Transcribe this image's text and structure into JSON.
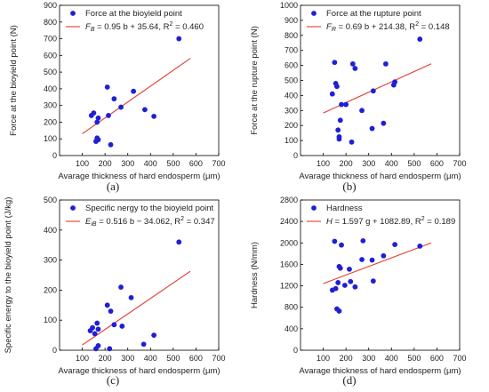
{
  "colors": {
    "point": "#1f1fd6",
    "fit": "#e8382e",
    "axis": "#000000"
  },
  "chart_data": [
    {
      "type": "scatter",
      "panel_label": "(a)",
      "xlabel": "Avarage thickness of hard endosperm (μm)",
      "ylabel": "Force at the bioyield point (N)",
      "xlim": [
        0,
        700
      ],
      "ylim": [
        0,
        900
      ],
      "xticks": [
        "100",
        "200",
        "300",
        "400",
        "500",
        "600",
        "700"
      ],
      "yticks": [
        "0",
        "100",
        "200",
        "300",
        "400",
        "500",
        "600",
        "700",
        "800",
        "900"
      ],
      "legend": {
        "position": "top-left",
        "point_label": "Force at the bioyield point",
        "fit_label": {
          "var": "F",
          "sub": "B",
          "rest": " = 0.95 b + 35.64, R",
          "sup": "2",
          "tail": " = 0.460"
        }
      },
      "series": [
        {
          "name": "Force at the bioyield point",
          "x": [
            140,
            150,
            160,
            165,
            165,
            170,
            170,
            210,
            215,
            225,
            240,
            270,
            325,
            375,
            415,
            525
          ],
          "y": [
            240,
            255,
            85,
            105,
            200,
            225,
            95,
            410,
            240,
            65,
            340,
            290,
            385,
            275,
            235,
            700
          ]
        }
      ],
      "fit": {
        "slope": 0.95,
        "intercept": 35.64,
        "x_range": [
          100,
          575
        ]
      }
    },
    {
      "type": "scatter",
      "panel_label": "(b)",
      "xlabel": "Avarage thickness of hard endosperm (μm)",
      "ylabel": "Force at the rupture point (N)",
      "xlim": [
        0,
        700
      ],
      "ylim": [
        0,
        1000
      ],
      "xticks": [
        "100",
        "200",
        "300",
        "400",
        "500",
        "600",
        "700"
      ],
      "yticks": [
        "0",
        "100",
        "200",
        "300",
        "400",
        "500",
        "600",
        "700",
        "800",
        "900",
        "1000"
      ],
      "legend": {
        "position": "top-left",
        "point_label": "Force at the rupture point",
        "fit_label": {
          "var": "F",
          "sub": "R",
          "rest": " = 0.69 b + 214.38, R",
          "sup": "2",
          "tail": " = 0.148"
        }
      },
      "series": [
        {
          "name": "Force at the rupture point",
          "x": [
            140,
            150,
            155,
            160,
            165,
            170,
            170,
            175,
            180,
            200,
            225,
            230,
            240,
            270,
            315,
            320,
            365,
            375,
            410,
            415,
            525
          ],
          "y": [
            410,
            620,
            480,
            460,
            170,
            110,
            125,
            235,
            340,
            340,
            90,
            610,
            580,
            300,
            180,
            430,
            215,
            610,
            470,
            490,
            775
          ]
        }
      ],
      "fit": {
        "slope": 0.69,
        "intercept": 214.38,
        "x_range": [
          100,
          575
        ]
      }
    },
    {
      "type": "scatter",
      "panel_label": "(c)",
      "xlabel": "Avarage thickness of hard endosperm (μm)",
      "ylabel": "Specific energy to the bioyield point (J/kg)",
      "xlim": [
        0,
        700
      ],
      "ylim": [
        0,
        500
      ],
      "xticks": [
        "100",
        "200",
        "300",
        "400",
        "500",
        "600",
        "700"
      ],
      "yticks": [
        "0",
        "100",
        "200",
        "300",
        "400",
        "500"
      ],
      "legend": {
        "position": "top-left",
        "point_label": "Specific nergy to the bioyield point",
        "fit_label": {
          "var": "E",
          "sub": "iB",
          "rest": " = 0.516 b − 34.062, R",
          "sup": "2",
          "tail": " = 0.347"
        }
      },
      "series": [
        {
          "name": "Specific nergy to the bioyield point",
          "x": [
            135,
            145,
            155,
            160,
            165,
            170,
            170,
            210,
            220,
            225,
            240,
            270,
            275,
            315,
            370,
            415,
            525
          ],
          "y": [
            65,
            75,
            55,
            5,
            90,
            70,
            15,
            150,
            5,
            130,
            85,
            210,
            80,
            175,
            20,
            50,
            360
          ]
        }
      ],
      "fit": {
        "slope": 0.516,
        "intercept": -34.062,
        "x_range": [
          100,
          575
        ]
      }
    },
    {
      "type": "scatter",
      "panel_label": "(d)",
      "xlabel": "Avarage thickness of hard endosperm (μm)",
      "ylabel": "Hardness (N/mm)",
      "xlim": [
        0,
        700
      ],
      "ylim": [
        0,
        2800
      ],
      "xticks": [
        "100",
        "200",
        "300",
        "400",
        "500",
        "600",
        "700"
      ],
      "yticks": [
        "0",
        "400",
        "800",
        "1200",
        "1600",
        "2000",
        "2400",
        "2800"
      ],
      "legend": {
        "position": "top-left",
        "point_label": "Hardness",
        "fit_label": {
          "var": "H",
          "sub": "",
          "rest": " = 1.597 g + 1082.89, R",
          "sup": "2",
          "tail": " = 0.189"
        }
      },
      "series": [
        {
          "name": "Hardness",
          "x": [
            140,
            150,
            155,
            160,
            165,
            170,
            170,
            175,
            180,
            195,
            215,
            220,
            240,
            270,
            275,
            315,
            320,
            365,
            415,
            525
          ],
          "y": [
            1120,
            2030,
            1150,
            770,
            1260,
            1560,
            730,
            1530,
            1960,
            1210,
            1510,
            1280,
            1180,
            1690,
            2040,
            1680,
            1290,
            1760,
            1970,
            1940
          ]
        }
      ],
      "fit": {
        "slope": 1.597,
        "intercept": 1082.89,
        "x_range": [
          100,
          575
        ]
      }
    }
  ]
}
